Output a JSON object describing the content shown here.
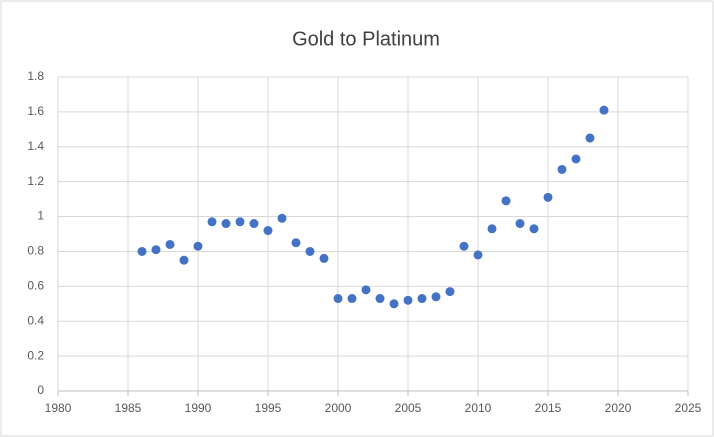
{
  "chart_data": {
    "type": "scatter",
    "title": "Gold to Platinum",
    "x": [
      1986,
      1987,
      1988,
      1989,
      1990,
      1991,
      1992,
      1993,
      1994,
      1995,
      1996,
      1997,
      1998,
      1999,
      2000,
      2001,
      2002,
      2003,
      2004,
      2005,
      2006,
      2007,
      2008,
      2009,
      2010,
      2011,
      2012,
      2013,
      2014,
      2015,
      2016,
      2017,
      2018,
      2019
    ],
    "values": [
      0.8,
      0.81,
      0.84,
      0.75,
      0.83,
      0.97,
      0.96,
      0.97,
      0.96,
      0.92,
      0.99,
      0.85,
      0.8,
      0.76,
      0.53,
      0.53,
      0.58,
      0.53,
      0.5,
      0.52,
      0.53,
      0.54,
      0.57,
      0.83,
      0.78,
      0.93,
      1.09,
      0.96,
      0.93,
      1.11,
      1.27,
      1.33,
      1.45,
      1.61
    ],
    "color": "#4472c4",
    "xlim": [
      1980,
      2025
    ],
    "xticks": [
      1980,
      1985,
      1990,
      1995,
      2000,
      2005,
      2010,
      2015,
      2020,
      2025
    ],
    "ylim": [
      0,
      1.8
    ],
    "yticks": [
      0,
      0.2,
      0.4,
      0.6,
      0.8,
      1,
      1.2,
      1.4,
      1.6,
      1.8
    ],
    "grid": true
  }
}
